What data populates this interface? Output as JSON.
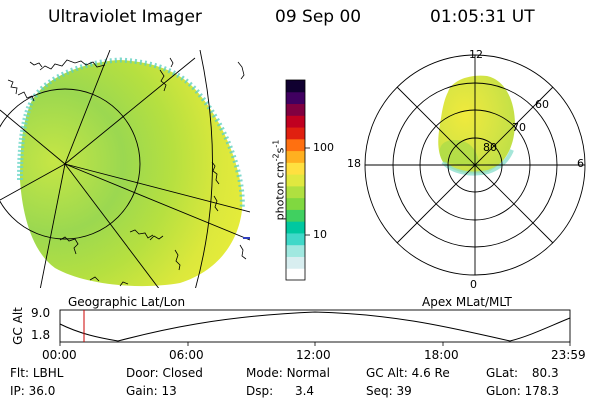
{
  "header": {
    "instrument": "Ultraviolet Imager",
    "date": "09 Sep 00",
    "time": "01:05:31 UT"
  },
  "left_panel": {
    "label": "Geographic Lat/Lon"
  },
  "right_panel": {
    "label": "Apex MLat/MLT",
    "mlt_labels": {
      "top": "12",
      "left": "18",
      "right": "6",
      "bottom": "0"
    },
    "mlat_labels": [
      "60",
      "70",
      "80"
    ]
  },
  "colorbar": {
    "unit_label": "photon cm",
    "unit_sup1": "-2",
    "unit_s": "s",
    "unit_sup2": "-1",
    "ticks": [
      "100",
      "10"
    ],
    "colors": [
      "#ffffff",
      "#d8eef0",
      "#a0e8e0",
      "#40d8c8",
      "#00c8a0",
      "#40d060",
      "#80d840",
      "#b0e040",
      "#e0e840",
      "#ffe040",
      "#ffb020",
      "#ff7010",
      "#e02010",
      "#c00020",
      "#800040",
      "#400060",
      "#100030"
    ]
  },
  "timeline": {
    "axis_label": "GC Alt",
    "y_ticks": [
      "9.0",
      "1.8"
    ],
    "x_ticks": [
      "00:00",
      "06:00",
      "12:00",
      "18:00",
      "23:59"
    ],
    "marker_color": "#cc0000"
  },
  "footer": {
    "row1": [
      {
        "label": "Flt:",
        "value": "LBHL"
      },
      {
        "label": "Door:",
        "value": "Closed"
      },
      {
        "label": "Mode:",
        "value": "Normal"
      },
      {
        "label": "GC Alt:",
        "value": "4.6 Re"
      },
      {
        "label": "GLat:",
        "value": "80.3"
      }
    ],
    "row2": [
      {
        "label": "IP:",
        "value": "36.0"
      },
      {
        "label": "Gain:",
        "value": "13"
      },
      {
        "label": "Dsp:",
        "value": "3.4"
      },
      {
        "label": "Seq:",
        "value": "39"
      },
      {
        "label": "GLon:",
        "value": "178.3"
      }
    ]
  }
}
